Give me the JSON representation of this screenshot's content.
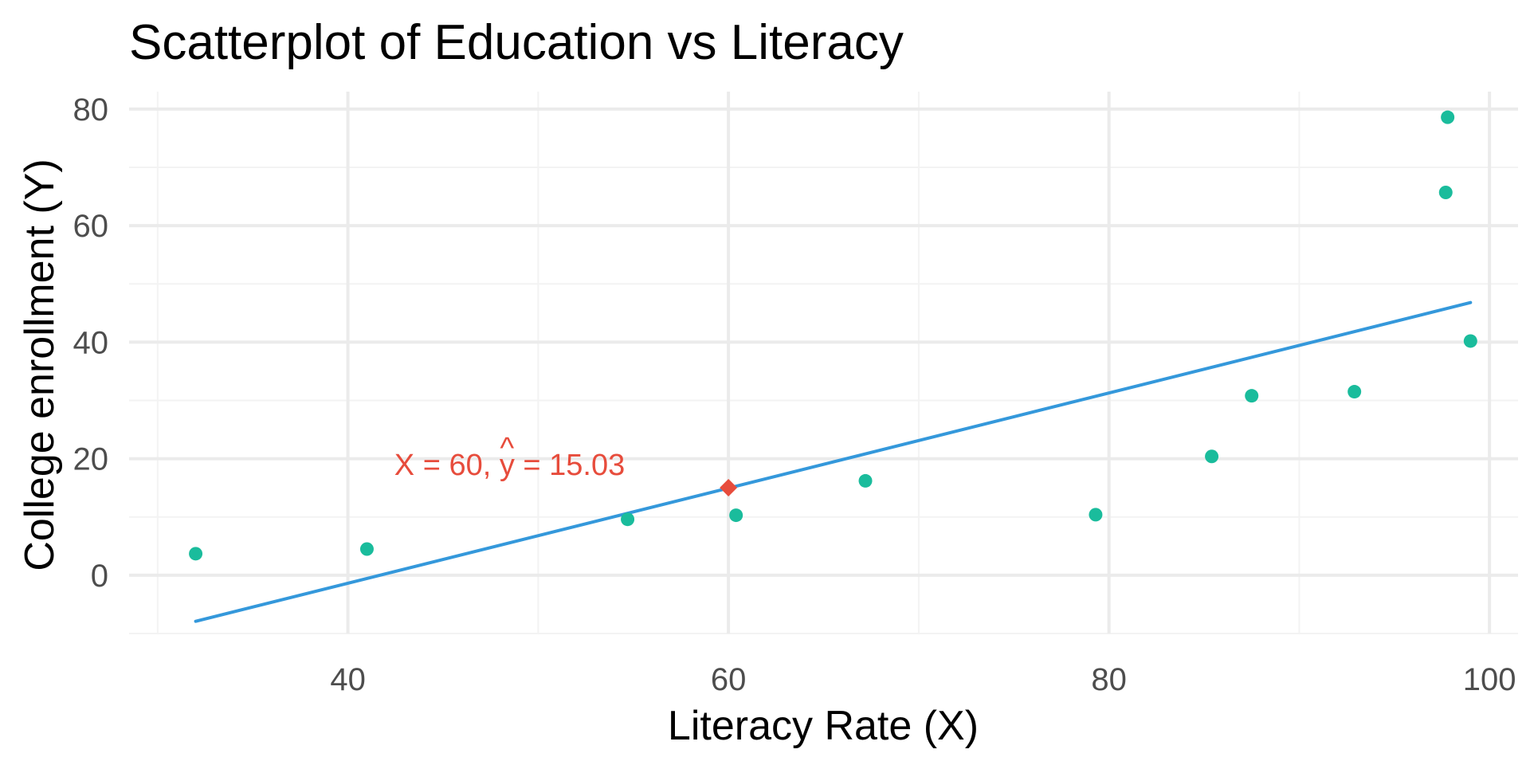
{
  "chart_data": {
    "type": "scatter",
    "title": "Scatterplot of Education vs Literacy",
    "xlabel": "Literacy Rate (X)",
    "ylabel": "College enrollment (Y)",
    "xlim": [
      28.5,
      101.5
    ],
    "ylim": [
      -10,
      83
    ],
    "x_ticks": [
      40,
      60,
      80,
      100
    ],
    "y_ticks": [
      0,
      20,
      40,
      60,
      80
    ],
    "x_minor_ticks": [
      30,
      50,
      70,
      90
    ],
    "y_minor_ticks": [
      -10,
      10,
      30,
      50,
      70
    ],
    "grid": true,
    "points": [
      {
        "x": 32,
        "y": 3.7
      },
      {
        "x": 41,
        "y": 4.5
      },
      {
        "x": 54.7,
        "y": 9.6
      },
      {
        "x": 60.4,
        "y": 10.3
      },
      {
        "x": 67.2,
        "y": 16.2
      },
      {
        "x": 79.3,
        "y": 10.4
      },
      {
        "x": 85.4,
        "y": 20.4
      },
      {
        "x": 87.5,
        "y": 30.8
      },
      {
        "x": 92.9,
        "y": 31.5
      },
      {
        "x": 97.7,
        "y": 65.7
      },
      {
        "x": 97.8,
        "y": 78.6
      },
      {
        "x": 99,
        "y": 40.2
      }
    ],
    "regression_line": {
      "x": [
        32,
        99
      ],
      "y": [
        -7.9,
        46.8
      ]
    },
    "highlight_point": {
      "x": 60,
      "y": 15.03
    },
    "annotation": {
      "prefix": "X = 60, ",
      "y_hat": "y",
      "y_hat_mark": "^",
      "suffix": " = 15.03",
      "x": 48.5,
      "y": 19
    },
    "colors": {
      "points": "#1abc9c",
      "line": "#3498db",
      "highlight": "#e74c3c",
      "grid_major": "#ebebeb",
      "grid_minor": "#f3f3f3"
    }
  }
}
